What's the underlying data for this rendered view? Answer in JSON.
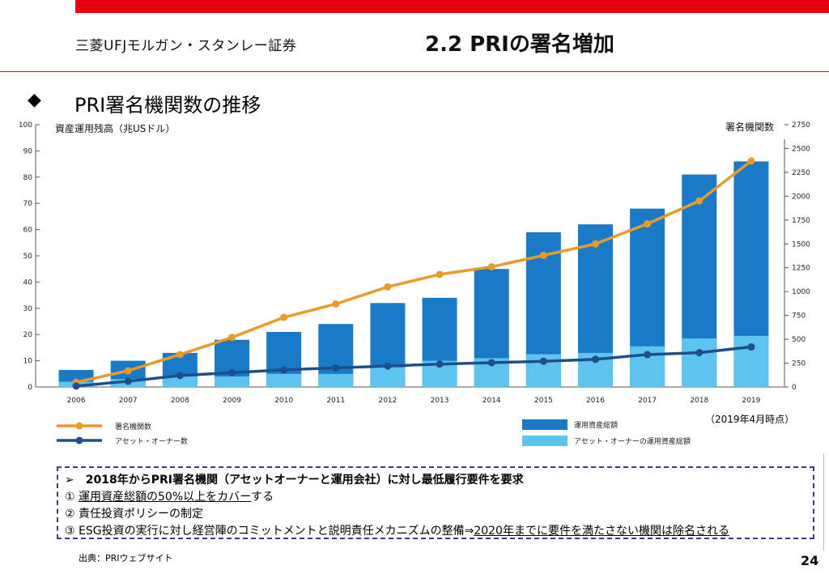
{
  "header": {
    "logo": "三菱UFJモルガン・スタンレー証券",
    "title": "2.2 PRIの署名増加"
  },
  "section": {
    "bullet": "◆",
    "heading": "PRI署名機関数の推移"
  },
  "chart_data": {
    "type": "bar",
    "left_axis_label": "資産運用残高（兆USドル）",
    "right_axis_label": "署名機関数",
    "categories": [
      "2006",
      "2007",
      "2008",
      "2009",
      "2010",
      "2011",
      "2012",
      "2013",
      "2014",
      "2015",
      "2016",
      "2017",
      "2018",
      "2019"
    ],
    "left_ticks": [
      0,
      10,
      20,
      30,
      40,
      50,
      60,
      70,
      80,
      90,
      100
    ],
    "right_ticks": [
      0,
      250,
      500,
      750,
      1000,
      1250,
      1500,
      1750,
      2000,
      2250,
      2500,
      2750
    ],
    "ylim_left": [
      0,
      100
    ],
    "ylim_right": [
      0,
      2750
    ],
    "series": [
      {
        "name": "運用資産総額",
        "kind": "bar",
        "axis": "left",
        "color": "#1a7ac7",
        "values": [
          6.5,
          10,
          13,
          18,
          21,
          24,
          32,
          34,
          45,
          59,
          62,
          68,
          81,
          86
        ]
      },
      {
        "name": "アセット・オーナーの運用資産総額",
        "kind": "bar",
        "axis": "left",
        "color": "#5fc3f0",
        "values": [
          2,
          3,
          4,
          4,
          5,
          5,
          7.5,
          10,
          11,
          12.5,
          13,
          15.5,
          18.5,
          19.5
        ]
      },
      {
        "name": "署名機関数",
        "kind": "line",
        "axis": "right",
        "color": "#e99b2a",
        "values": [
          50,
          170,
          340,
          520,
          730,
          870,
          1050,
          1180,
          1260,
          1380,
          1500,
          1710,
          1950,
          2370
        ]
      },
      {
        "name": "アセット・オーナー数",
        "kind": "line",
        "axis": "right",
        "color": "#1f4e8c",
        "values": [
          10,
          60,
          120,
          150,
          180,
          200,
          220,
          240,
          255,
          270,
          290,
          340,
          360,
          420
        ]
      }
    ],
    "legend_placement": "bottom"
  },
  "note": "（2019年4月時点）",
  "requirements": {
    "line0": "➢　2018年からPRI署名機関（アセットオーナーと運用会社）に対し最低履行要件を要求",
    "line1_prefix": "① ",
    "line1_u": "運用資産総額の50%以上をカバー",
    "line1_suffix": "する",
    "line2": "② 責任投資ポリシーの制定",
    "line3_prefix": "③ ESG投資の実行に対し経営陣のコミットメントと説明責任メカニズムの整備⇒",
    "line3_u": "2020年までに要件を満たさない機関は除名される"
  },
  "footer": {
    "source": "出典：PRIウェブサイト",
    "page": "24"
  }
}
